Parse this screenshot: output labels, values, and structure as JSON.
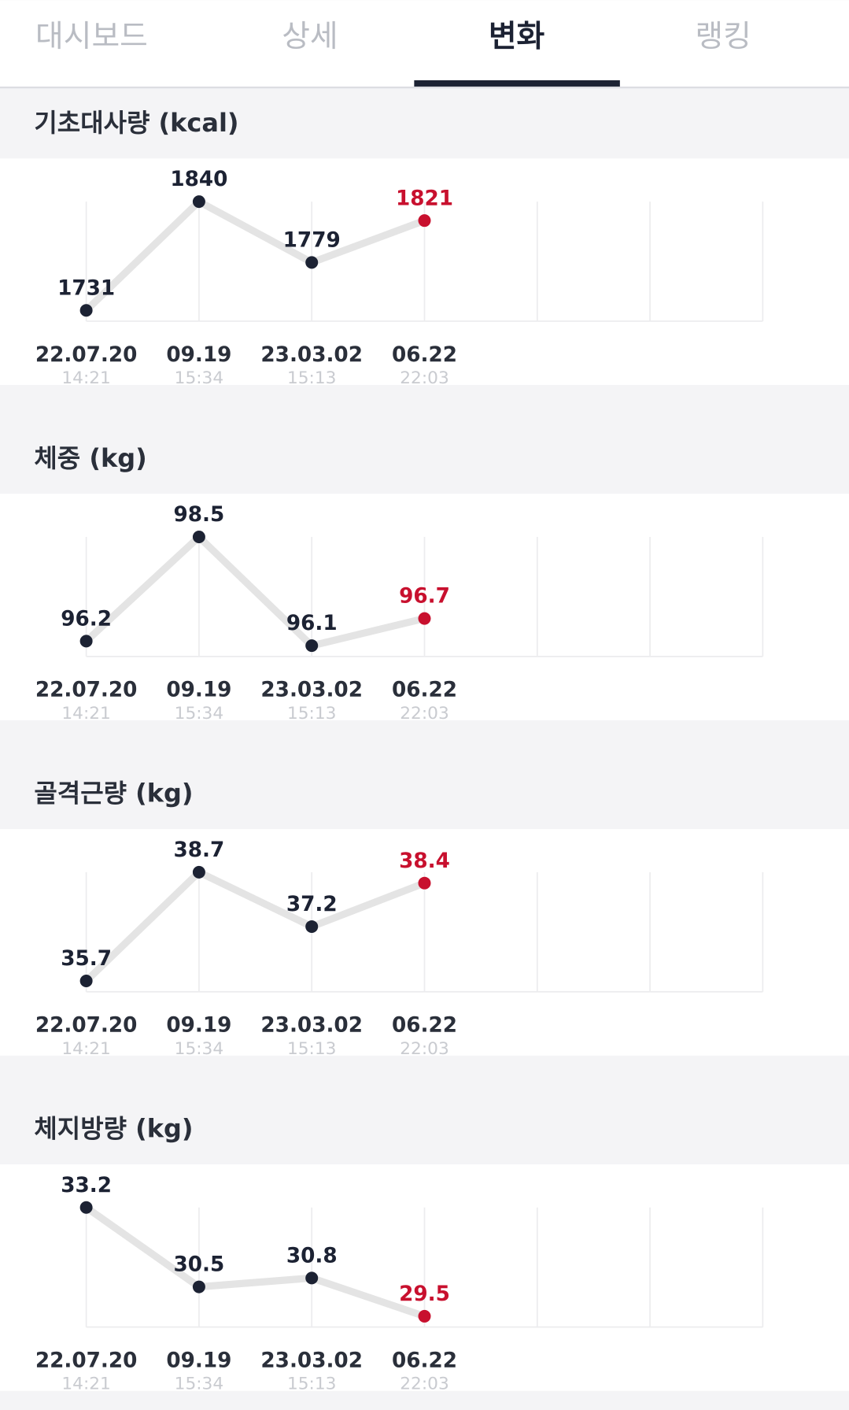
{
  "tabs": [
    "대시보드",
    "상세",
    "변화",
    "랭킹"
  ],
  "active_tab": 2,
  "chart_data": [
    {
      "type": "line",
      "title": "기초대사량 (kcal)",
      "categories": [
        "22.07.20",
        "09.19",
        "23.03.02",
        "06.22"
      ],
      "times": [
        "14:21",
        "15:34",
        "15:13",
        "22:03"
      ],
      "values": [
        1731,
        1840,
        1779,
        1821
      ],
      "color": "#1c2233",
      "highlight_color": "#c8102e",
      "line_color": "#e4e4e4",
      "highlight_last": true,
      "grid": true
    },
    {
      "type": "line",
      "title": "체중 (kg)",
      "categories": [
        "22.07.20",
        "09.19",
        "23.03.02",
        "06.22"
      ],
      "times": [
        "14:21",
        "15:34",
        "15:13",
        "22:03"
      ],
      "values": [
        96.2,
        98.5,
        96.1,
        96.7
      ],
      "color": "#1c2233",
      "highlight_color": "#c8102e",
      "line_color": "#e4e4e4",
      "highlight_last": true,
      "grid": true
    },
    {
      "type": "line",
      "title": "골격근량 (kg)",
      "categories": [
        "22.07.20",
        "09.19",
        "23.03.02",
        "06.22"
      ],
      "times": [
        "14:21",
        "15:34",
        "15:13",
        "22:03"
      ],
      "values": [
        35.7,
        38.7,
        37.2,
        38.4
      ],
      "color": "#1c2233",
      "highlight_color": "#c8102e",
      "line_color": "#e4e4e4",
      "highlight_last": true,
      "grid": true
    },
    {
      "type": "line",
      "title": "체지방량 (kg)",
      "categories": [
        "22.07.20",
        "09.19",
        "23.03.02",
        "06.22"
      ],
      "times": [
        "14:21",
        "15:34",
        "15:13",
        "22:03"
      ],
      "values": [
        33.2,
        30.5,
        30.8,
        29.5
      ],
      "color": "#1c2233",
      "highlight_color": "#c8102e",
      "line_color": "#e4e4e4",
      "highlight_last": true,
      "grid": true
    }
  ]
}
